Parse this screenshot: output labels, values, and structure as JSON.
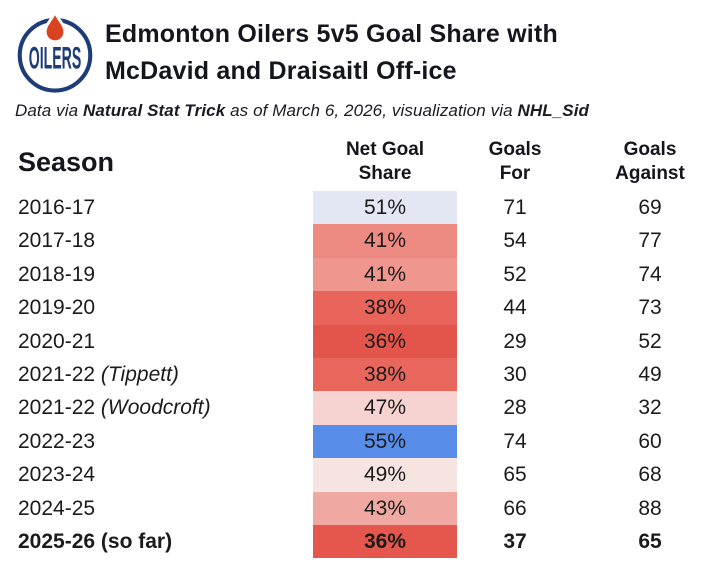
{
  "header": {
    "title_line1": "Edmonton Oilers 5v5 Goal Share with",
    "title_line2": "McDavid and Draisaitl Off-ice",
    "logo_text": "OILERS",
    "logo_colors": {
      "navy": "#1e3c78",
      "orange": "#d9431f"
    }
  },
  "subtitle": {
    "prefix": "Data via ",
    "source": "Natural Stat Trick",
    "middle": " as of March 6, 2026, visualization via ",
    "author": "NHL_Sid"
  },
  "table": {
    "columns": {
      "season": "Season",
      "net_goal_share": "Net Goal\nShare",
      "goals_for": "Goals\nFor",
      "goals_against": "Goals\nAgainst"
    },
    "rows": [
      {
        "season_main": "2016-17",
        "season_note": "",
        "share": "51%",
        "goals_for": "71",
        "goals_against": "69",
        "color": "#e3e7f3",
        "bold": false
      },
      {
        "season_main": "2017-18",
        "season_note": "",
        "share": "41%",
        "goals_for": "54",
        "goals_against": "77",
        "color": "#ed8a81",
        "bold": false
      },
      {
        "season_main": "2018-19",
        "season_note": "",
        "share": "41%",
        "goals_for": "52",
        "goals_against": "74",
        "color": "#ef968e",
        "bold": false
      },
      {
        "season_main": "2019-20",
        "season_note": "",
        "share": "38%",
        "goals_for": "44",
        "goals_against": "73",
        "color": "#e9645b",
        "bold": false
      },
      {
        "season_main": "2020-21",
        "season_note": "",
        "share": "36%",
        "goals_for": "29",
        "goals_against": "52",
        "color": "#e3544a",
        "bold": false
      },
      {
        "season_main": "2021-22",
        "season_note": "(Tippett)",
        "share": "38%",
        "goals_for": "30",
        "goals_against": "49",
        "color": "#e9665d",
        "bold": false
      },
      {
        "season_main": "2021-22",
        "season_note": "(Woodcroft)",
        "share": "47%",
        "goals_for": "28",
        "goals_against": "32",
        "color": "#f6d3d0",
        "bold": false
      },
      {
        "season_main": "2022-23",
        "season_note": "",
        "share": "55%",
        "goals_for": "74",
        "goals_against": "60",
        "color": "#578de9",
        "bold": false
      },
      {
        "season_main": "2023-24",
        "season_note": "",
        "share": "49%",
        "goals_for": "65",
        "goals_against": "68",
        "color": "#f6e4e2",
        "bold": false
      },
      {
        "season_main": "2024-25",
        "season_note": "",
        "share": "43%",
        "goals_for": "66",
        "goals_against": "88",
        "color": "#f0a9a2",
        "bold": false
      },
      {
        "season_main": "2025-26 (so far)",
        "season_note": "",
        "share": "36%",
        "goals_for": "37",
        "goals_against": "65",
        "color": "#e5574d",
        "bold": true
      }
    ]
  },
  "chart_data": {
    "type": "table",
    "title": "Edmonton Oilers 5v5 Goal Share with McDavid and Draisaitl Off-ice",
    "subtitle": "Data via Natural Stat Trick as of March 6, 2026, visualization via NHL_Sid",
    "columns": [
      "Season",
      "Net Goal Share",
      "Goals For",
      "Goals Against"
    ],
    "rows": [
      [
        "2016-17",
        "51%",
        71,
        69
      ],
      [
        "2017-18",
        "41%",
        54,
        77
      ],
      [
        "2018-19",
        "41%",
        52,
        74
      ],
      [
        "2019-20",
        "38%",
        44,
        73
      ],
      [
        "2020-21",
        "36%",
        29,
        52
      ],
      [
        "2021-22 (Tippett)",
        "38%",
        30,
        49
      ],
      [
        "2021-22 (Woodcroft)",
        "47%",
        28,
        32
      ],
      [
        "2022-23",
        "55%",
        74,
        60
      ],
      [
        "2023-24",
        "49%",
        65,
        68
      ],
      [
        "2024-25",
        "43%",
        66,
        88
      ],
      [
        "2025-26 (so far)",
        "36%",
        37,
        65
      ]
    ],
    "layout_hints": {
      "color_encoding": "Net Goal Share cell uses diverging red-blue scale: red below 50%, pale near 50%, blue above 50%",
      "emphasis": "2025-26 (so far) row rendered in bold"
    }
  }
}
